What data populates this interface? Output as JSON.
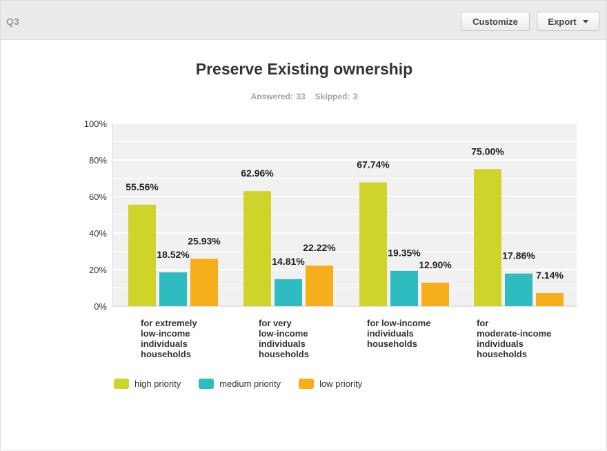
{
  "header": {
    "question_label": "Q3",
    "customize_label": "Customize",
    "export_label": "Export"
  },
  "chart_title": "Preserve Existing ownership",
  "stats": {
    "answered": "Answered: 33",
    "skipped": "Skipped: 3"
  },
  "colors": {
    "high": "#cfd42a",
    "medium": "#2fbcc0",
    "low": "#f7ae1b",
    "plot_bg": "#f1f1f1",
    "grid": "#ffffff"
  },
  "chart_data": {
    "type": "bar",
    "title": "Preserve Existing ownership",
    "categories": [
      "for extremely\nlow-income\nindividuals\nhouseholds",
      "for very\nlow-income\nindividuals\nhouseholds",
      "for low-income\nindividuals\nhouseholds",
      "for\nmoderate-income\nindividuals\nhouseholds"
    ],
    "series": [
      {
        "name": "high priority",
        "values": [
          55.56,
          62.96,
          67.74,
          75.0
        ],
        "labels": [
          "55.56%",
          "62.96%",
          "67.74%",
          "75.00%"
        ]
      },
      {
        "name": "medium priority",
        "values": [
          18.52,
          14.81,
          19.35,
          17.86
        ],
        "labels": [
          "18.52%",
          "14.81%",
          "19.35%",
          "17.86%"
        ]
      },
      {
        "name": "low priority",
        "values": [
          25.93,
          22.22,
          12.9,
          7.14
        ],
        "labels": [
          "25.93%",
          "22.22%",
          "12.90%",
          "7.14%"
        ]
      }
    ],
    "yticks": [
      "0%",
      "20%",
      "40%",
      "60%",
      "80%",
      "100%"
    ],
    "ylim": [
      0,
      100
    ],
    "grid": true,
    "legend": "bottom-left"
  }
}
